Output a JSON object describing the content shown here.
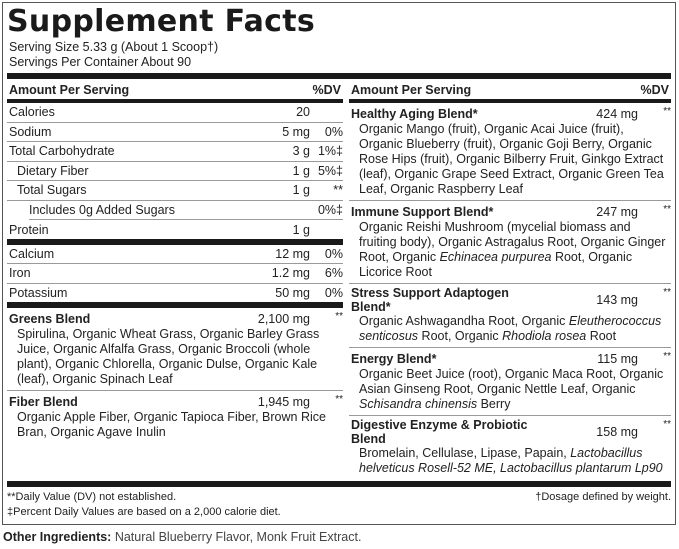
{
  "title": "Supplement Facts",
  "serving_size": "Serving Size 5.33 g (About 1 Scoop†)",
  "servings_per_container": "Servings Per Container About 90",
  "header": {
    "amount": "Amount Per Serving",
    "dv": "%DV"
  },
  "nutrients": [
    {
      "name": "Calories",
      "amount": "20",
      "dv": "",
      "indent": 0
    },
    {
      "name": "Sodium",
      "amount": "5 mg",
      "dv": "0%",
      "indent": 0
    },
    {
      "name": "Total Carbohydrate",
      "amount": "3 g",
      "dv": "1%‡",
      "indent": 0
    },
    {
      "name": "Dietary Fiber",
      "amount": "1 g",
      "dv": "5%‡",
      "indent": 1
    },
    {
      "name": "Total Sugars",
      "amount": "1 g",
      "dv": "**",
      "indent": 1
    },
    {
      "name": "Includes 0g Added Sugars",
      "amount": "",
      "dv": "0%‡",
      "indent": 2
    },
    {
      "name": "Protein",
      "amount": "1 g",
      "dv": "",
      "indent": 0
    }
  ],
  "minerals": [
    {
      "name": "Calcium",
      "amount": "12 mg",
      "dv": "0%"
    },
    {
      "name": "Iron",
      "amount": "1.2 mg",
      "dv": "6%"
    },
    {
      "name": "Potassium",
      "amount": "50 mg",
      "dv": "0%"
    }
  ],
  "left_blends": [
    {
      "name": "Greens Blend",
      "amount": "2,100 mg",
      "dv": "**",
      "desc": [
        {
          "t": "Spirulina, Organic Wheat Grass, Organic Barley Grass Juice, Organic Alfalfa Grass, Organic Broccoli (whole plant), Organic Chlorella, Organic Dulse, Organic Kale (leaf), Organic Spinach Leaf",
          "i": false
        }
      ]
    },
    {
      "name": "Fiber Blend",
      "amount": "1,945 mg",
      "dv": "**",
      "desc": [
        {
          "t": "Organic Apple Fiber, Organic Tapioca Fiber, Brown Rice Bran, Organic Agave Inulin",
          "i": false
        }
      ]
    }
  ],
  "right_blends": [
    {
      "name": "Healthy Aging Blend*",
      "amount": "424 mg",
      "dv": "**",
      "desc": [
        {
          "t": "Organic Mango (fruit), Organic Acai Juice (fruit), Organic Blueberry (fruit), Organic Goji Berry, Organic Rose Hips (fruit), Organic Bilberry Fruit, Ginkgo Extract (leaf), Organic Grape Seed Extract, Organic Green Tea Leaf, Organic Raspberry Leaf",
          "i": false
        }
      ]
    },
    {
      "name": "Immune Support Blend*",
      "amount": "247 mg",
      "dv": "**",
      "desc": [
        {
          "t": "Organic Reishi Mushroom (mycelial biomass and fruiting body), Organic Astragalus Root, Organic Ginger Root, Organic ",
          "i": false
        },
        {
          "t": "Echinacea purpurea",
          "i": true
        },
        {
          "t": " Root, Organic Licorice Root",
          "i": false
        }
      ]
    },
    {
      "name": "Stress Support Adaptogen Blend*",
      "amount": "143 mg",
      "dv": "**",
      "desc": [
        {
          "t": "Organic Ashwagandha Root, Organic ",
          "i": false
        },
        {
          "t": "Eleutherococcus senticosus",
          "i": true
        },
        {
          "t": " Root, Organic ",
          "i": false
        },
        {
          "t": "Rhodiola rosea",
          "i": true
        },
        {
          "t": " Root",
          "i": false
        }
      ]
    },
    {
      "name": "Energy Blend*",
      "amount": "115 mg",
      "dv": "**",
      "desc": [
        {
          "t": "Organic Beet Juice (root), Organic Maca Root, Organic Asian Ginseng Root, Organic Nettle Leaf, Organic ",
          "i": false
        },
        {
          "t": "Schisandra chinensis",
          "i": true
        },
        {
          "t": " Berry",
          "i": false
        }
      ]
    },
    {
      "name": "Digestive Enzyme & Probiotic Blend",
      "amount": "158 mg",
      "dv": "**",
      "desc": [
        {
          "t": "Bromelain, Cellulase, Lipase, Papain, ",
          "i": false
        },
        {
          "t": "Lactobacillus helveticus Rosell-52 ME, Lactobacillus plantarum Lp90",
          "i": true
        }
      ]
    }
  ],
  "footnotes": {
    "dv_not_established": "**Daily Value (DV) not established.",
    "calorie_diet": "‡Percent Daily Values are based on a 2,000 calorie diet.",
    "dosage": "†Dosage defined by weight."
  },
  "other_ingredients": {
    "label": "Other Ingredients:",
    "text": " Natural Blueberry Flavor, Monk Fruit Extract."
  }
}
